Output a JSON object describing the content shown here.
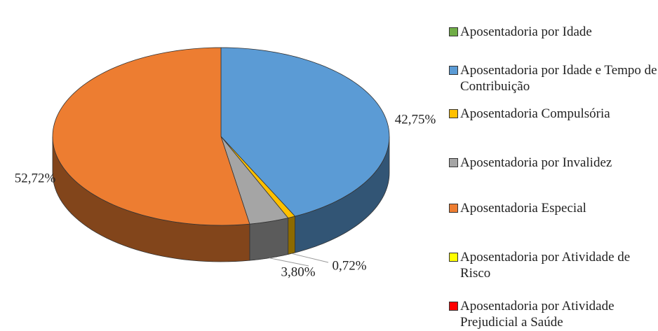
{
  "chart_data": {
    "type": "pie3d",
    "categories": [
      "Aposentadoria por Idade",
      "Aposentadoria por Idade e Tempo de Contribuição",
      "Aposentadoria Compulsória",
      "Aposentadoria por Invalidez",
      "Aposentadoria Especial",
      "Aposentadoria por Atividade de Risco",
      "Aposentadoria por Atividade Prejudicial a Saúde"
    ],
    "values": [
      0,
      42.75,
      0.72,
      3.8,
      52.72,
      0,
      0
    ],
    "value_labels": [
      null,
      "42,75%",
      "0,72%",
      "3,80%",
      "52,72%",
      null,
      null
    ],
    "colors": [
      "#70ad47",
      "#5b9bd5",
      "#ffc000",
      "#a5a5a5",
      "#ed7d31",
      "#ffff00",
      "#ff0000"
    ],
    "legend": "right"
  }
}
